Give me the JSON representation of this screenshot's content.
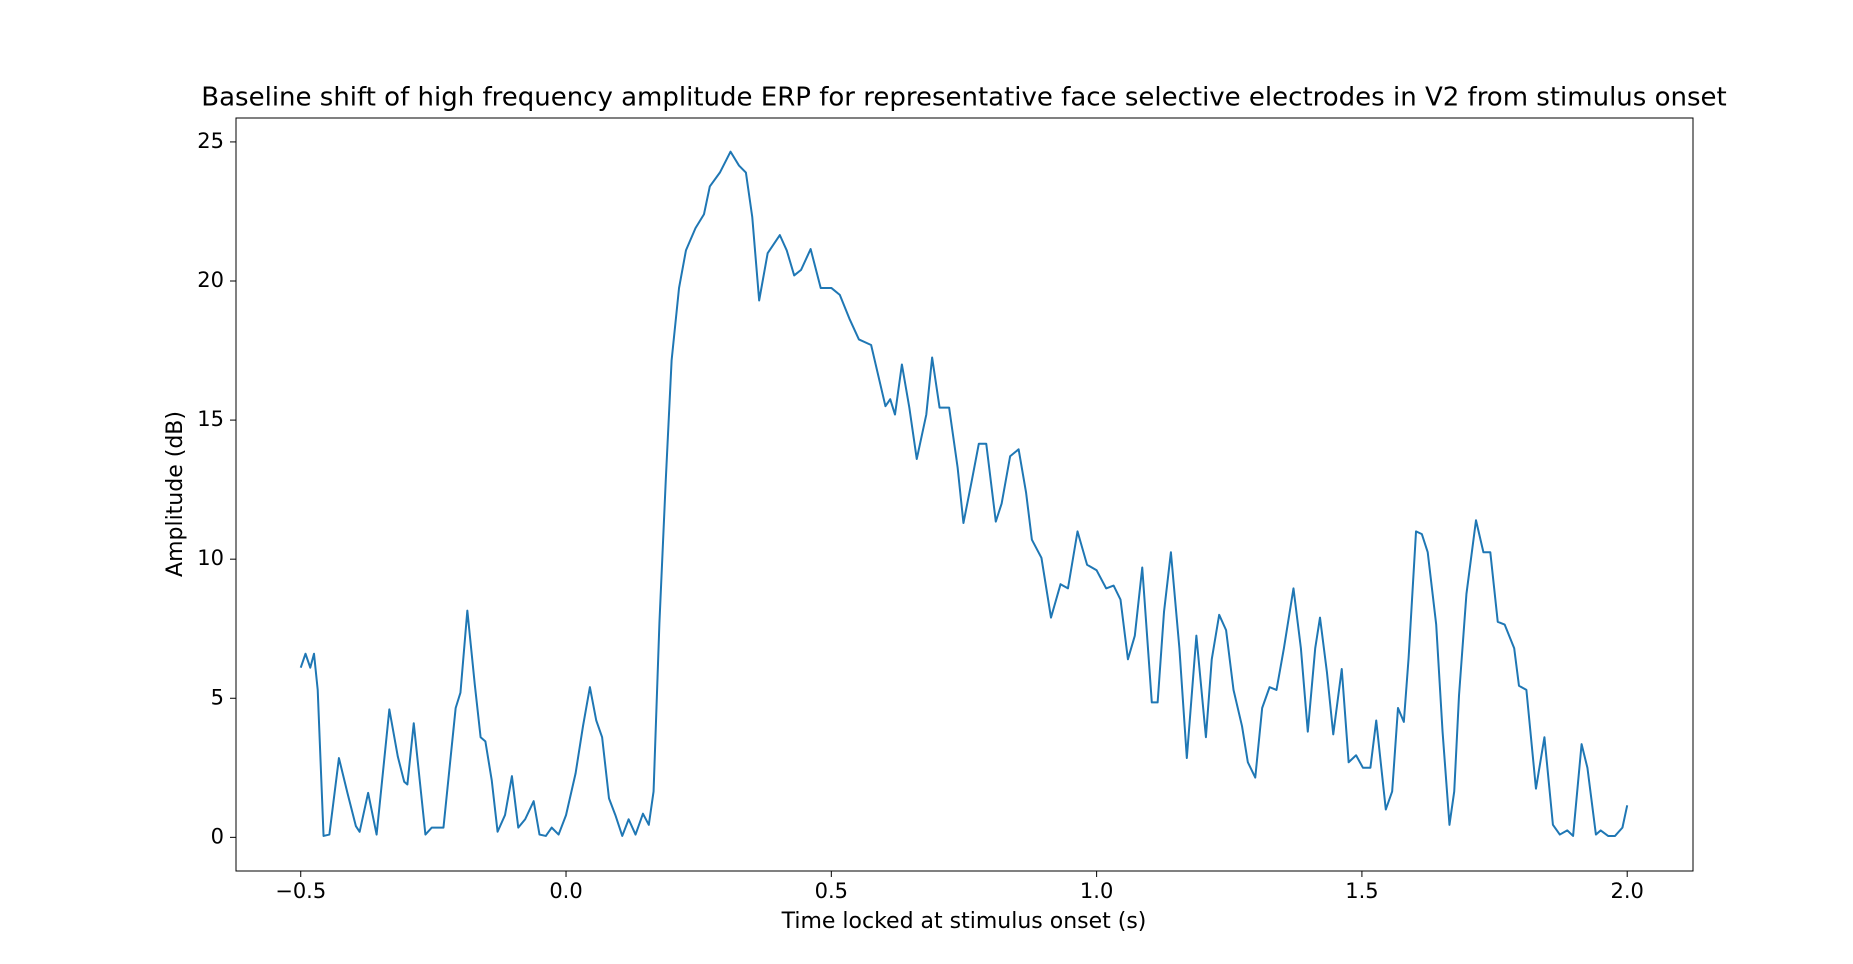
{
  "chart_data": {
    "type": "line",
    "title": "Baseline shift of high frequency amplitude ERP for representative face selective electrodes in V2 from stimulus onset",
    "x_label": "Time locked at stimulus onset (s)",
    "y_label": "Amplitude (dB)",
    "x": [
      -0.5,
      -0.491,
      -0.482,
      -0.475,
      -0.468,
      -0.457,
      -0.446,
      -0.428,
      -0.412,
      -0.396,
      -0.389,
      -0.373,
      -0.357,
      -0.333,
      -0.317,
      -0.305,
      -0.299,
      -0.287,
      -0.276,
      -0.265,
      -0.253,
      -0.231,
      -0.208,
      -0.199,
      -0.186,
      -0.172,
      -0.161,
      -0.152,
      -0.14,
      -0.129,
      -0.115,
      -0.102,
      -0.09,
      -0.077,
      -0.061,
      -0.05,
      -0.038,
      -0.027,
      -0.014,
      0.0,
      0.018,
      0.032,
      0.045,
      0.057,
      0.068,
      0.081,
      0.093,
      0.106,
      0.118,
      0.131,
      0.145,
      0.156,
      0.165,
      0.176,
      0.188,
      0.199,
      0.213,
      0.226,
      0.244,
      0.26,
      0.271,
      0.29,
      0.31,
      0.326,
      0.339,
      0.351,
      0.364,
      0.38,
      0.403,
      0.416,
      0.43,
      0.443,
      0.461,
      0.48,
      0.5,
      0.516,
      0.534,
      0.552,
      0.575,
      0.602,
      0.611,
      0.62,
      0.633,
      0.647,
      0.661,
      0.679,
      0.69,
      0.704,
      0.722,
      0.738,
      0.749,
      0.765,
      0.778,
      0.792,
      0.81,
      0.821,
      0.837,
      0.853,
      0.867,
      0.878,
      0.896,
      0.914,
      0.932,
      0.946,
      0.964,
      0.982,
      1.0,
      1.018,
      1.032,
      1.045,
      1.059,
      1.072,
      1.086,
      1.104,
      1.115,
      1.127,
      1.14,
      1.156,
      1.17,
      1.188,
      1.206,
      1.217,
      1.231,
      1.244,
      1.258,
      1.274,
      1.285,
      1.299,
      1.312,
      1.326,
      1.339,
      1.353,
      1.371,
      1.385,
      1.398,
      1.412,
      1.421,
      1.434,
      1.446,
      1.462,
      1.475,
      1.489,
      1.502,
      1.516,
      1.527,
      1.545,
      1.557,
      1.568,
      1.579,
      1.588,
      1.602,
      1.613,
      1.624,
      1.64,
      1.652,
      1.665,
      1.674,
      1.683,
      1.697,
      1.715,
      1.729,
      1.742,
      1.756,
      1.769,
      1.787,
      1.796,
      1.81,
      1.828,
      1.844,
      1.86,
      1.873,
      1.887,
      1.898,
      1.914,
      1.925,
      1.941,
      1.95,
      1.964,
      1.977,
      1.991,
      2.0
    ],
    "series": [
      {
        "color": "#1f77b4",
        "values": [
          6.1,
          6.6,
          6.1,
          6.6,
          5.3,
          0.05,
          0.1,
          2.85,
          1.6,
          0.4,
          0.2,
          1.6,
          0.1,
          4.6,
          2.9,
          2.0,
          1.9,
          4.1,
          2.1,
          0.1,
          0.35,
          0.35,
          4.65,
          5.2,
          8.15,
          5.5,
          3.6,
          3.45,
          2.05,
          0.2,
          0.8,
          2.2,
          0.35,
          0.65,
          1.3,
          0.1,
          0.05,
          0.35,
          0.1,
          0.8,
          2.3,
          4.0,
          5.4,
          4.2,
          3.6,
          1.4,
          0.8,
          0.05,
          0.65,
          0.1,
          0.85,
          0.45,
          1.65,
          7.7,
          12.85,
          17.15,
          19.75,
          21.1,
          21.9,
          22.4,
          23.4,
          23.9,
          24.65,
          24.15,
          23.9,
          22.3,
          19.3,
          21.0,
          21.65,
          21.1,
          20.2,
          20.4,
          21.15,
          19.75,
          19.75,
          19.5,
          18.65,
          17.9,
          17.7,
          15.5,
          15.75,
          15.2,
          17.0,
          15.45,
          13.6,
          15.2,
          17.25,
          15.45,
          15.45,
          13.3,
          11.3,
          12.85,
          14.15,
          14.15,
          11.35,
          12.0,
          13.7,
          13.95,
          12.4,
          10.7,
          10.05,
          7.9,
          9.1,
          8.95,
          11.0,
          9.8,
          9.6,
          8.95,
          9.05,
          8.55,
          6.4,
          7.25,
          9.7,
          4.85,
          4.85,
          8.1,
          10.25,
          6.8,
          2.85,
          7.25,
          3.6,
          6.4,
          8.0,
          7.45,
          5.3,
          4.0,
          2.7,
          2.15,
          4.65,
          5.4,
          5.3,
          6.8,
          8.95,
          6.8,
          3.8,
          6.8,
          7.9,
          5.95,
          3.7,
          6.05,
          2.7,
          2.95,
          2.5,
          2.5,
          4.2,
          1.0,
          1.65,
          4.65,
          4.15,
          6.45,
          11.0,
          10.9,
          10.25,
          7.65,
          3.8,
          0.45,
          1.65,
          5.1,
          8.75,
          11.4,
          10.25,
          10.25,
          7.75,
          7.65,
          6.8,
          5.45,
          5.3,
          1.75,
          3.6,
          0.45,
          0.1,
          0.25,
          0.05,
          3.35,
          2.5,
          0.1,
          0.25,
          0.05,
          0.05,
          0.35,
          1.15
        ]
      }
    ],
    "xlim": [
      -0.622,
      2.124
    ],
    "ylim": [
      -1.21,
      25.86
    ],
    "xticks": [
      {
        "value": -0.5,
        "label": "−0.5"
      },
      {
        "value": 0,
        "label": "0.0"
      },
      0.5,
      {
        "value": 1,
        "label": "1.0"
      },
      1.5,
      {
        "value": 2,
        "label": "2.0"
      }
    ],
    "yticks": [
      0,
      5,
      10,
      15,
      20,
      25
    ],
    "grid": false
  }
}
